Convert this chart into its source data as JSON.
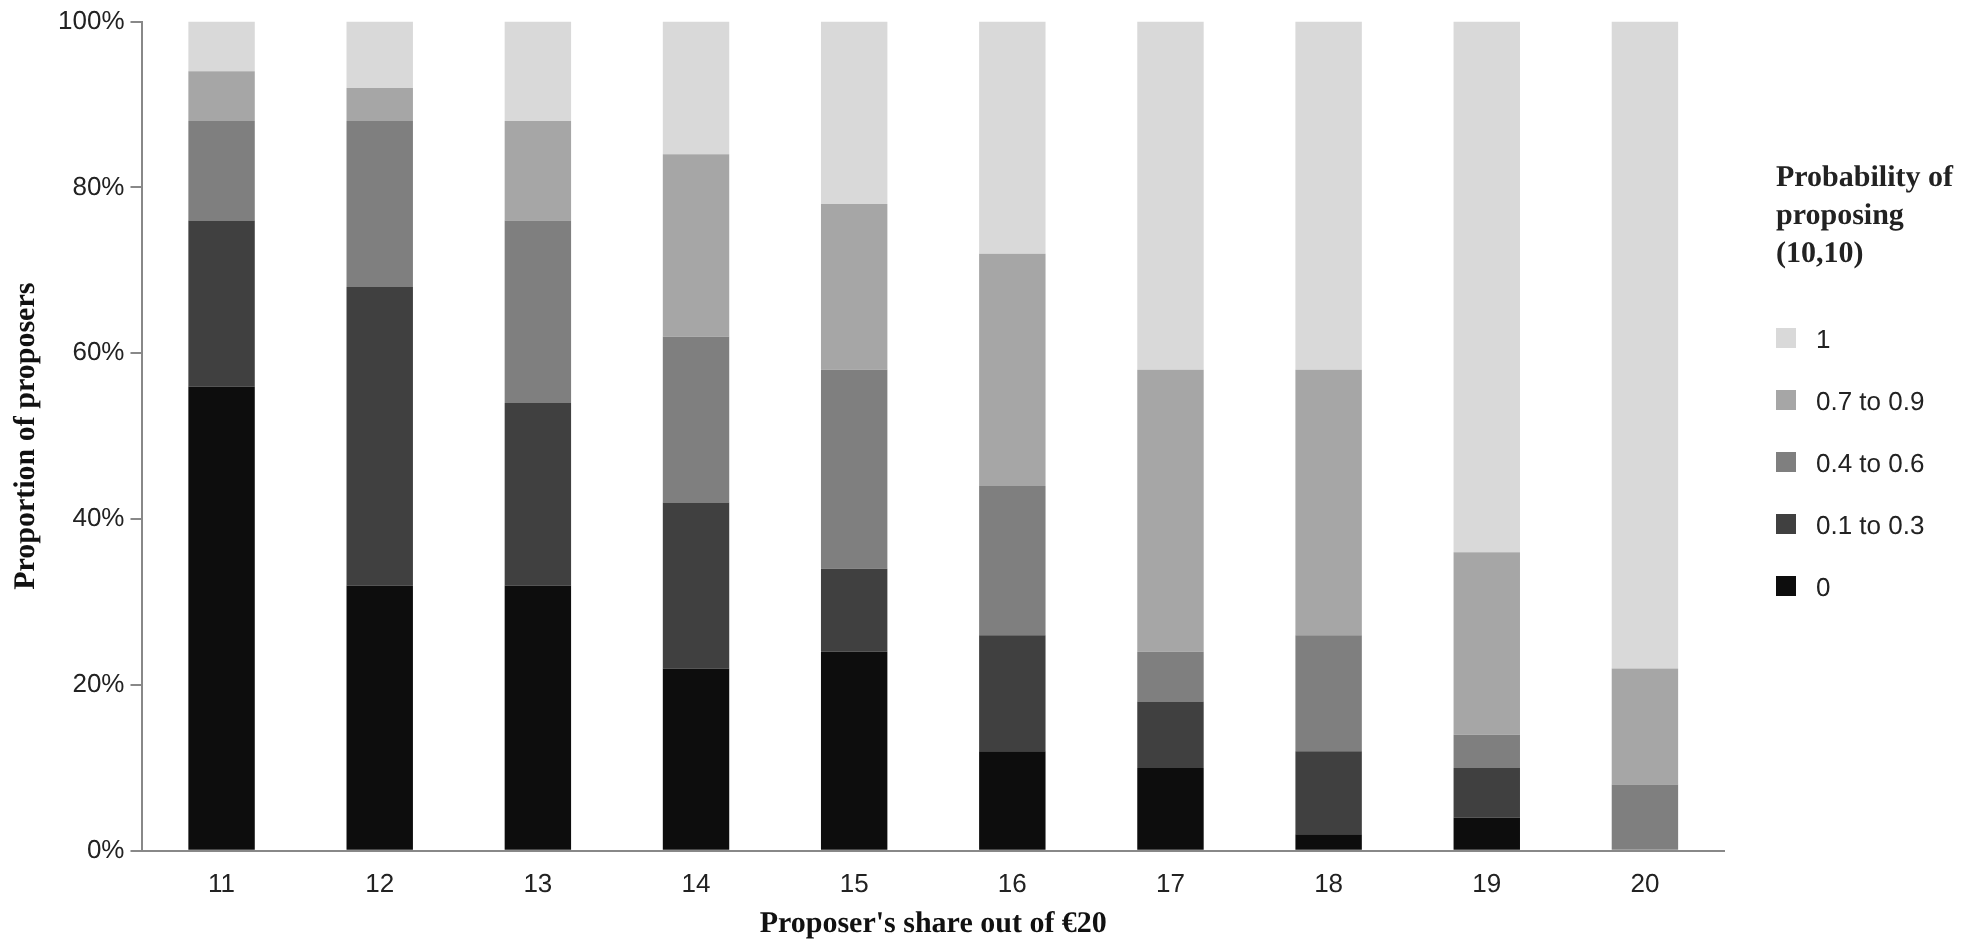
{
  "chart_data": {
    "type": "bar",
    "stacked": true,
    "xlabel": "Proposer's share out of €20",
    "ylabel": "Proportion of proposers",
    "legend_title": "Probability of proposing (10,10)",
    "legend": "right",
    "grid": false,
    "categories": [
      "11",
      "12",
      "13",
      "14",
      "15",
      "16",
      "17",
      "18",
      "19",
      "20"
    ],
    "ylim": [
      0,
      100
    ],
    "yticks": [
      {
        "value": 0,
        "label": "0%"
      },
      {
        "value": 20,
        "label": "20%"
      },
      {
        "value": 40,
        "label": "40%"
      },
      {
        "value": 60,
        "label": "60%"
      },
      {
        "value": 80,
        "label": "80%"
      },
      {
        "value": 100,
        "label": "100%"
      }
    ],
    "series": [
      {
        "name": "0",
        "color": "#0d0d0d",
        "values": [
          56,
          32,
          32,
          22,
          24,
          12,
          10,
          2,
          4,
          0
        ]
      },
      {
        "name": "0.1 to 0.3",
        "color": "#404040",
        "values": [
          20,
          36,
          22,
          20,
          10,
          14,
          8,
          10,
          6,
          0
        ]
      },
      {
        "name": "0.4 to 0.6",
        "color": "#7f7f7f",
        "values": [
          12,
          20,
          22,
          20,
          24,
          18,
          6,
          14,
          4,
          8
        ]
      },
      {
        "name": "0.7 to 0.9",
        "color": "#a6a6a6",
        "values": [
          6,
          4,
          12,
          22,
          20,
          28,
          34,
          32,
          22,
          14
        ]
      },
      {
        "name": "1",
        "color": "#d9d9d9",
        "values": [
          6,
          8,
          12,
          16,
          22,
          28,
          42,
          42,
          64,
          78
        ]
      }
    ]
  }
}
